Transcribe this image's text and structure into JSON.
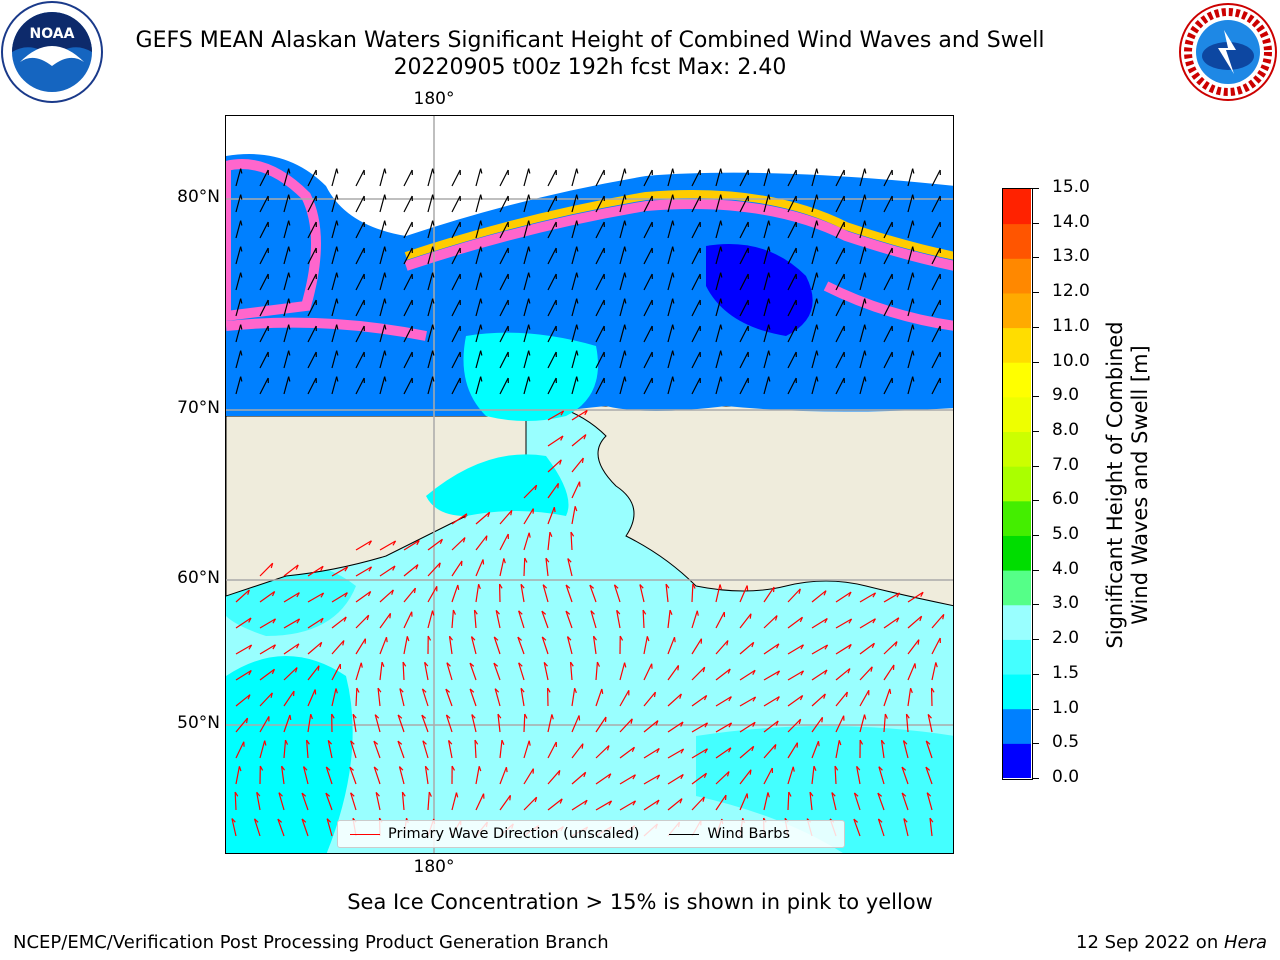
{
  "header": {
    "title_line1": "GEFS MEAN Alaskan Waters Significant Height of Combined Wind Waves and Swell",
    "title_line2": "20220905 t00z 192h fcst   Max: 2.40"
  },
  "logos": {
    "left": {
      "icon": "noaa-logo-icon",
      "text": "NOAA"
    },
    "right": {
      "icon": "nws-logo-icon",
      "text": "NATIONAL WEATHER SERVICE"
    }
  },
  "map": {
    "lon_label_top": "180°",
    "lon_label_bottom": "180°",
    "lat_labels": [
      "80°N",
      "70°N",
      "60°N",
      "50°N"
    ],
    "legend": {
      "wave_label": "Primary Wave Direction (unscaled)",
      "wave_color": "#ff0000",
      "wind_label": "Wind Barbs",
      "wind_color": "#000000"
    },
    "colors": {
      "land": "#efecdc",
      "ocean_low": "#99ffff",
      "ocean_mid": "#00ffff",
      "ocean_1": "#0080ff",
      "ocean_0": "#0000ff",
      "ice_pink": "#ff66cc",
      "ice_yellow": "#ffcc00"
    }
  },
  "colorbar": {
    "label_line1": "Significant Height of Combined",
    "label_line2": "Wind Waves and Swell [m]",
    "ticks": [
      "0.0",
      "0.5",
      "1.0",
      "1.5",
      "2.0",
      "3.0",
      "4.0",
      "5.0",
      "6.0",
      "7.0",
      "8.0",
      "9.0",
      "10.0",
      "11.0",
      "12.0",
      "13.0",
      "14.0",
      "15.0"
    ],
    "colors": [
      "#0000ff",
      "#0080ff",
      "#00ffff",
      "#44ffff",
      "#99ffff",
      "#55ff88",
      "#00dd00",
      "#44ee00",
      "#aaff00",
      "#ccff00",
      "#eeff00",
      "#ffff00",
      "#ffdd00",
      "#ffaa00",
      "#ff8800",
      "#ff5500",
      "#ff2200"
    ]
  },
  "footer": {
    "note": "Sea Ice Concentration > 15% is shown in pink to yellow",
    "left": "NCEP/EMC/Verification Post Processing Product Generation Branch",
    "right_prefix": "12 Sep 2022 on ",
    "right_host": "Hera"
  }
}
